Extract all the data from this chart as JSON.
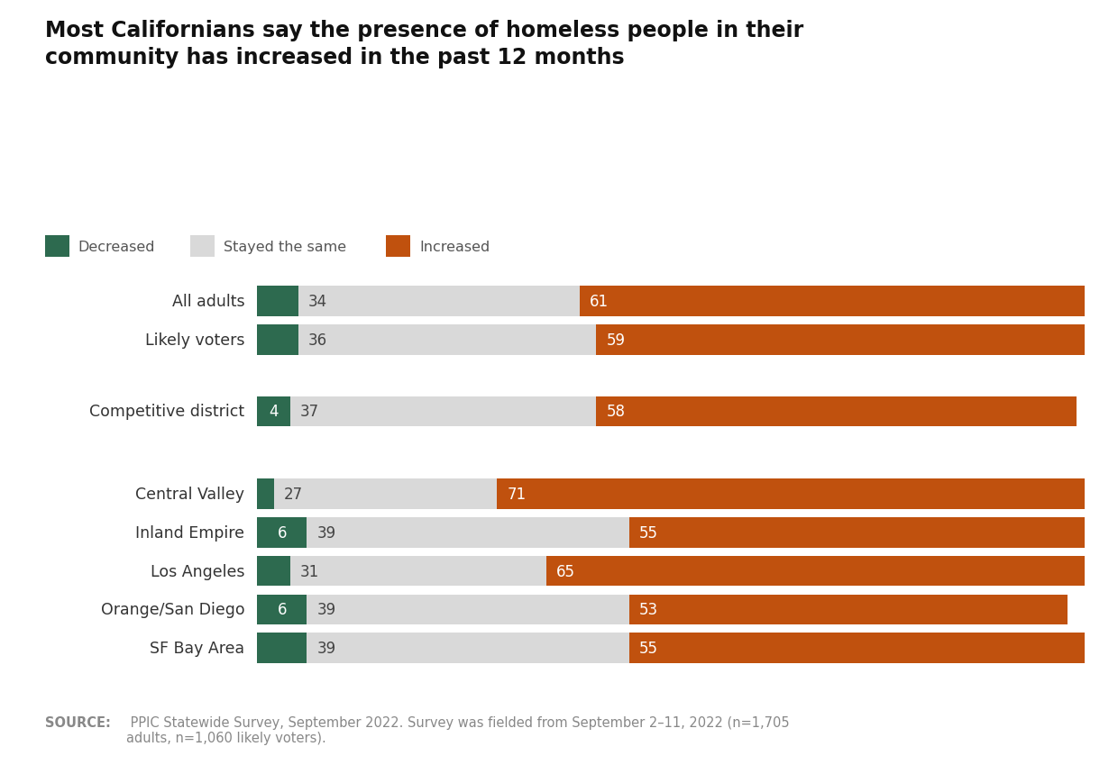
{
  "title": "Most Californians say the presence of homeless people in their\ncommunity has increased in the past 12 months",
  "categories": [
    "All adults",
    "Likely voters",
    "Competitive district",
    "Central Valley",
    "Inland Empire",
    "Los Angeles",
    "Orange/San Diego",
    "SF Bay Area"
  ],
  "decreased": [
    5,
    5,
    4,
    2,
    6,
    4,
    6,
    6
  ],
  "stayed_same": [
    34,
    36,
    37,
    27,
    39,
    31,
    39,
    39
  ],
  "increased": [
    61,
    59,
    58,
    71,
    55,
    65,
    53,
    55
  ],
  "show_decreased_label": [
    false,
    false,
    true,
    false,
    true,
    false,
    true,
    false
  ],
  "color_decreased": "#2d6a4f",
  "color_stayed": "#d9d9d9",
  "color_increased": "#c0510e",
  "color_bg": "#ffffff",
  "color_footer_bg": "#ebebeb",
  "color_label_dark": "#444444",
  "color_label_white": "#ffffff",
  "source_bold": "SOURCE:",
  "source_text": " PPIC Statewide Survey, September 2022. Survey was fielded from September 2–11, 2022 (n=1,705\nadults, n=1,060 likely voters).",
  "legend_labels": [
    "Decreased",
    "Stayed the same",
    "Increased"
  ],
  "bar_height": 0.55,
  "y_positions": [
    9.2,
    8.5,
    7.2,
    5.7,
    5.0,
    4.3,
    3.6,
    2.9
  ],
  "y_min": 2.3,
  "y_max": 9.7
}
